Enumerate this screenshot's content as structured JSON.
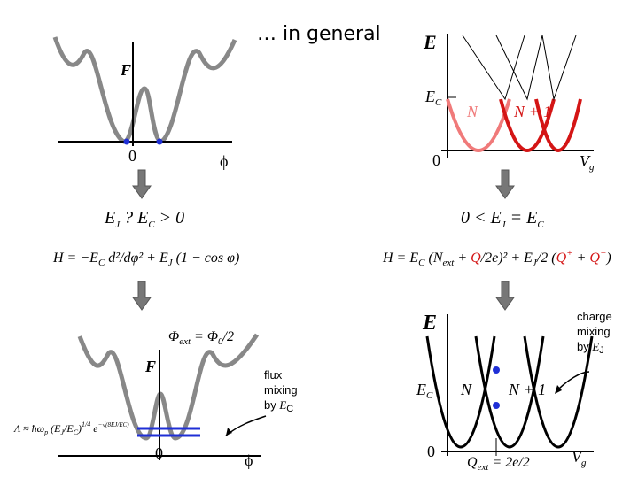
{
  "title": "… in general",
  "top_left": {
    "axis_y": "F",
    "origin": "0",
    "axis_x": "ϕ"
  },
  "top_right": {
    "axis_y": "E",
    "level": [
      "E",
      "C"
    ],
    "label_n": "N",
    "label_n1": "N + 1",
    "origin": "0",
    "axis_x": [
      "V",
      "g"
    ]
  },
  "left_condition": [
    "E",
    "J",
    " ? ",
    "E",
    "C",
    " > 0"
  ],
  "right_condition": [
    "0 < ",
    "E",
    "J",
    " = ",
    "E",
    "C"
  ],
  "left_hamiltonian": [
    "H = −",
    "E",
    "C",
    " d²/dφ² + ",
    "E",
    "J",
    " (1 − cos φ)"
  ],
  "right_hamiltonian": [
    "H = ",
    "E",
    "C",
    " (",
    "N",
    "ext",
    " + ",
    "Q",
    "/2e)² + ",
    "E",
    "J",
    "/2 (",
    "Q",
    "+",
    " + ",
    "Q",
    "−",
    ")"
  ],
  "bottom_left": {
    "flux_label": [
      "Φ",
      "ext",
      " = Φ",
      "0",
      "/2"
    ],
    "axis_y": "F",
    "annotation": [
      "flux",
      "mixing",
      "by ",
      "E",
      "C"
    ],
    "origin": "0",
    "axis_x": "ϕ",
    "formula": [
      "Λ ≈ ħω",
      "p",
      " (",
      "E",
      "J",
      "/",
      "E",
      "C",
      ")",
      "1/4",
      " e",
      "−√(8EJ/EC)"
    ]
  },
  "bottom_right": {
    "annotation": [
      "charge",
      "mixing",
      "by ",
      "E",
      "J"
    ],
    "axis_y": "E",
    "level": [
      "E",
      "C"
    ],
    "label_n": "N",
    "label_n1": "N + 1",
    "origin": "0",
    "axis_x": [
      "V",
      "g"
    ],
    "charge_label": [
      "Q",
      "ext",
      " = 2e/2"
    ]
  }
}
